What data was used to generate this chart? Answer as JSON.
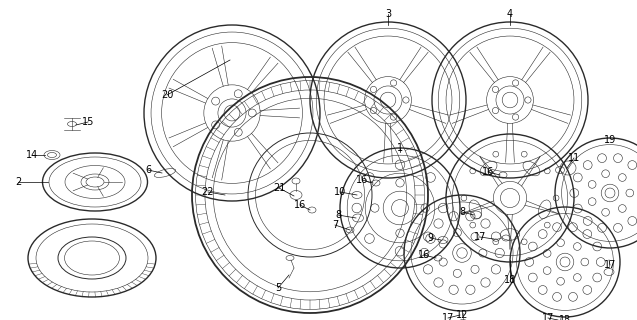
{
  "bg_color": "#ffffff",
  "line_color": "#2a2a2a",
  "figsize": [
    6.37,
    3.2
  ],
  "dpi": 100,
  "xlim": [
    0,
    637
  ],
  "ylim": [
    320,
    0
  ]
}
